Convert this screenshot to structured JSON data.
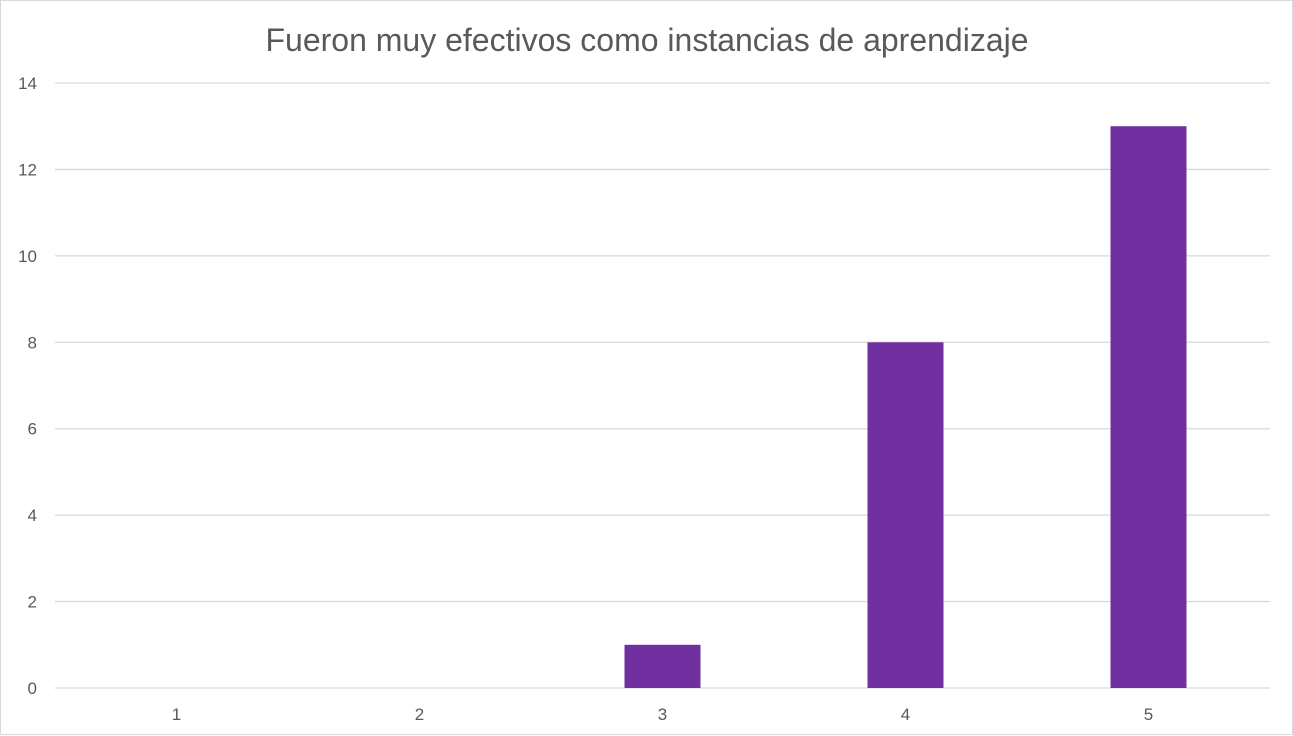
{
  "chart_data": {
    "type": "bar",
    "title": "Fueron muy efectivos como instancias de aprendizaje",
    "xlabel": "",
    "ylabel": "",
    "categories": [
      "1",
      "2",
      "3",
      "4",
      "5"
    ],
    "values": [
      0,
      0,
      1,
      8,
      13
    ],
    "ylim": [
      0,
      14
    ],
    "yticks": [
      "0",
      "2",
      "4",
      "6",
      "8",
      "10",
      "12",
      "14"
    ],
    "grid": true,
    "legend": "none",
    "bar_color": "#7030a0",
    "grid_color": "#d9d9d9",
    "text_color": "#595959"
  }
}
